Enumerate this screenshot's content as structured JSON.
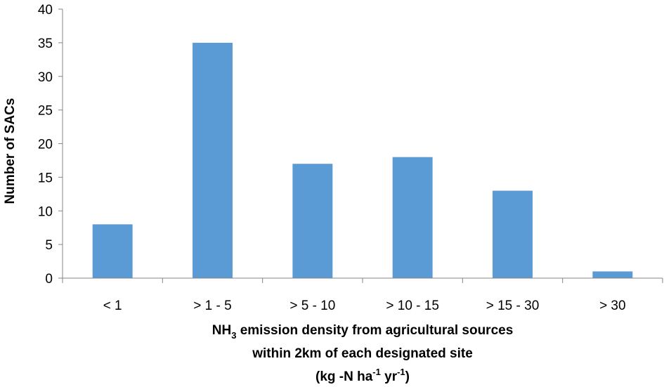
{
  "chart_data": {
    "type": "bar",
    "categories": [
      "< 1",
      "> 1 - 5",
      "> 5 - 10",
      "> 10 - 15",
      "> 15 - 30",
      "> 30"
    ],
    "values": [
      8,
      35,
      17,
      18,
      13,
      1
    ],
    "ylim": [
      0,
      40
    ],
    "yticks": [
      0,
      5,
      10,
      15,
      20,
      25,
      30,
      35,
      40
    ],
    "ylabel": "Number of SACs",
    "xlabel": {
      "line1_prefix": "NH",
      "line1_sub": "3",
      "line1_suffix": " emission density from agricultural sources",
      "line2": "within 2km of each designated site",
      "line3_a": "(kg -N ha",
      "line3_sup1": "-1",
      "line3_b": " yr",
      "line3_sup2": "-1",
      "line3_c": ")"
    },
    "bar_color": "#5b9bd5",
    "grid": false,
    "legend": "none"
  }
}
